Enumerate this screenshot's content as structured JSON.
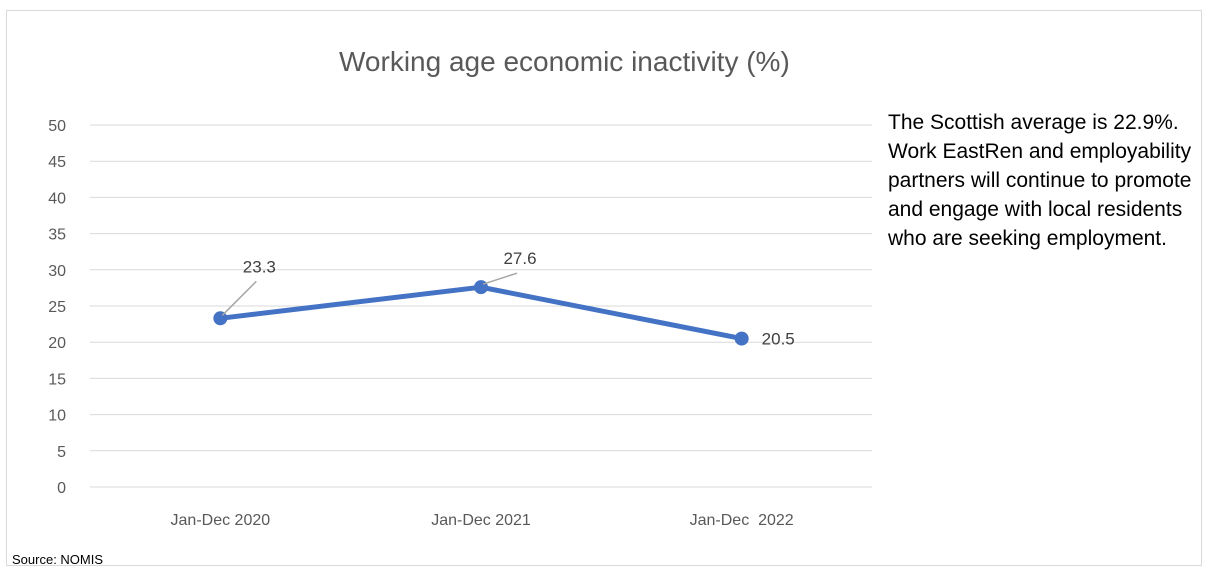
{
  "chart_data": {
    "type": "line",
    "title": "Working age economic inactivity (%)",
    "categories": [
      "Jan-Dec 2020",
      "Jan-Dec 2021",
      "Jan-Dec  2022"
    ],
    "series": [
      {
        "values": [
          23.3,
          27.6,
          20.5
        ],
        "data_labels": [
          "23.3",
          "27.6",
          "20.5"
        ]
      }
    ],
    "ylim": [
      0,
      50
    ],
    "yticks": [
      0,
      5,
      10,
      15,
      20,
      25,
      30,
      35,
      40,
      45,
      50
    ],
    "xlabel": "",
    "ylabel": "",
    "grid": true,
    "legend": "none",
    "line_color": "#4472c4",
    "grid_color": "#d9d9d9"
  },
  "note": "The Scottish average is 22.9%.  Work EastRen and employability partners will continue to promote and engage with local residents who are seeking employment.",
  "source": "Source: NOMIS"
}
